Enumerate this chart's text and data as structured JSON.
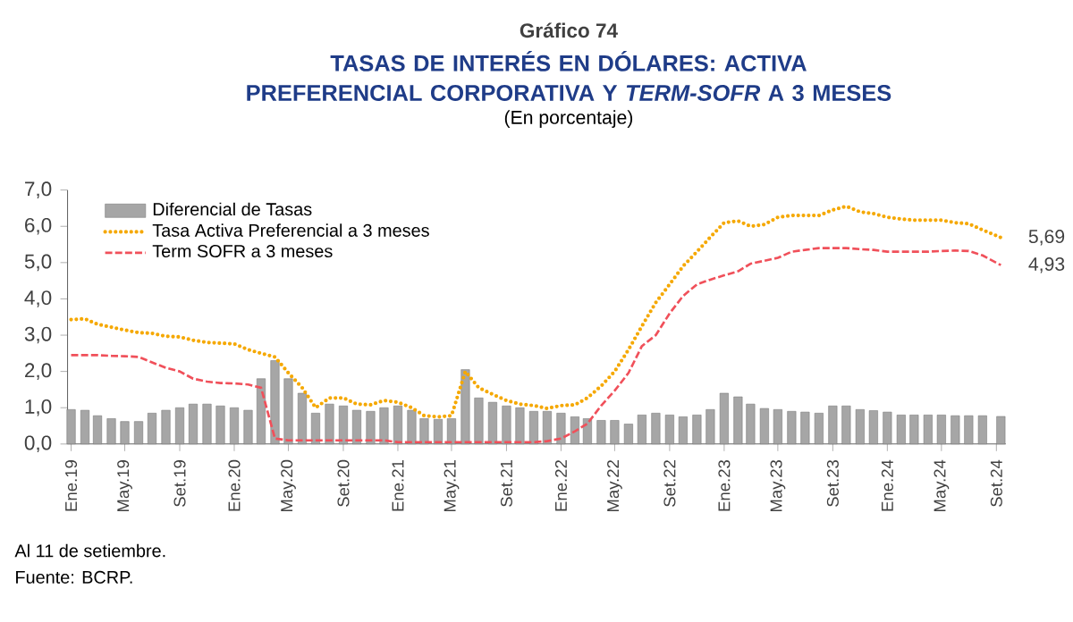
{
  "chart_data": {
    "type": "bar",
    "title": "TASAS DE INTERÉS EN DÓLARES: ACTIVA PREFERENCIAL CORPORATIVA Y *TERM-SOFR* A 3 MESES",
    "subtitle": "(En porcentaje)",
    "x": [
      "2019-01",
      "2019-02",
      "2019-03",
      "2019-04",
      "2019-05",
      "2019-06",
      "2019-07",
      "2019-08",
      "2019-09",
      "2019-10",
      "2019-11",
      "2019-12",
      "2020-01",
      "2020-02",
      "2020-03",
      "2020-04",
      "2020-05",
      "2020-06",
      "2020-07",
      "2020-08",
      "2020-09",
      "2020-10",
      "2020-11",
      "2020-12",
      "2021-01",
      "2021-02",
      "2021-03",
      "2021-04",
      "2021-05",
      "2021-06",
      "2021-07",
      "2021-08",
      "2021-09",
      "2021-10",
      "2021-11",
      "2021-12",
      "2022-01",
      "2022-02",
      "2022-03",
      "2022-04",
      "2022-05",
      "2022-06",
      "2022-07",
      "2022-08",
      "2022-09",
      "2022-10",
      "2022-11",
      "2022-12",
      "2023-01",
      "2023-02",
      "2023-03",
      "2023-04",
      "2023-05",
      "2023-06",
      "2023-07",
      "2023-08",
      "2023-09",
      "2023-10",
      "2023-11",
      "2023-12",
      "2024-01",
      "2024-02",
      "2024-03",
      "2024-04",
      "2024-05",
      "2024-06",
      "2024-07",
      "2024-08",
      "2024-09-11"
    ],
    "series": [
      {
        "name": "Diferencial de Tasas",
        "color": "#a6a6a6",
        "values": [
          0.95,
          0.93,
          0.78,
          0.7,
          0.62,
          0.62,
          0.85,
          0.93,
          1.0,
          1.1,
          1.1,
          1.05,
          1.0,
          0.93,
          1.8,
          2.3,
          1.8,
          1.4,
          0.85,
          1.1,
          1.05,
          0.93,
          0.9,
          1.0,
          1.05,
          0.93,
          0.7,
          0.68,
          0.7,
          2.05,
          1.27,
          1.15,
          1.05,
          1.0,
          0.9,
          0.9,
          0.85,
          0.75,
          0.7,
          0.65,
          0.65,
          0.55,
          0.8,
          0.85,
          0.8,
          0.75,
          0.8,
          0.95,
          1.4,
          1.3,
          1.1,
          0.98,
          0.95,
          0.9,
          0.88,
          0.85,
          1.05,
          1.05,
          0.95,
          0.92,
          0.88,
          0.8,
          0.8,
          0.8,
          0.8,
          0.78,
          0.78,
          0.78,
          0.76
        ]
      },
      {
        "name": "Tasa Activa Preferencial a 3 meses",
        "type": "line",
        "line_style": "dotted",
        "color": "#f5a800",
        "values": [
          3.43,
          3.45,
          3.3,
          3.22,
          3.14,
          3.07,
          3.05,
          2.97,
          2.95,
          2.86,
          2.8,
          2.78,
          2.76,
          2.6,
          2.5,
          2.4,
          1.96,
          1.55,
          1.0,
          1.27,
          1.27,
          1.1,
          1.08,
          1.2,
          1.15,
          1.0,
          0.78,
          0.75,
          0.78,
          2.0,
          1.55,
          1.37,
          1.2,
          1.1,
          1.06,
          0.98,
          1.06,
          1.08,
          1.27,
          1.6,
          2.0,
          2.6,
          3.25,
          3.9,
          4.4,
          4.9,
          5.3,
          5.7,
          6.1,
          6.15,
          6.0,
          6.05,
          6.25,
          6.3,
          6.3,
          6.3,
          6.45,
          6.55,
          6.4,
          6.35,
          6.25,
          6.2,
          6.17,
          6.17,
          6.17,
          6.1,
          6.07,
          5.9,
          5.69
        ]
      },
      {
        "name": "Term SOFR a 3 meses",
        "type": "line",
        "line_style": "dashed",
        "color": "#f0505a",
        "values": [
          2.45,
          2.45,
          2.45,
          2.43,
          2.42,
          2.4,
          2.25,
          2.1,
          2.0,
          1.8,
          1.72,
          1.68,
          1.67,
          1.64,
          1.55,
          0.15,
          0.1,
          0.1,
          0.1,
          0.1,
          0.1,
          0.1,
          0.1,
          0.1,
          0.05,
          0.05,
          0.05,
          0.05,
          0.05,
          0.05,
          0.05,
          0.05,
          0.05,
          0.05,
          0.05,
          0.08,
          0.15,
          0.35,
          0.56,
          1.06,
          1.47,
          1.96,
          2.7,
          3.0,
          3.6,
          4.08,
          4.4,
          4.53,
          4.65,
          4.76,
          4.97,
          5.05,
          5.13,
          5.3,
          5.35,
          5.4,
          5.4,
          5.4,
          5.37,
          5.35,
          5.3,
          5.3,
          5.3,
          5.3,
          5.32,
          5.33,
          5.32,
          5.2,
          4.93
        ]
      }
    ],
    "xlim": [
      "2018-12-24",
      "2024-09-22"
    ],
    "xticks": [
      {
        "value": "2019-01",
        "label": "Ene.19"
      },
      {
        "value": "2019-05",
        "label": "May.19"
      },
      {
        "value": "2019-09",
        "label": "Set.19"
      },
      {
        "value": "2020-01",
        "label": "Ene.20"
      },
      {
        "value": "2020-05",
        "label": "May.20"
      },
      {
        "value": "2020-09",
        "label": "Set.20"
      },
      {
        "value": "2021-01",
        "label": "Ene.21"
      },
      {
        "value": "2021-05",
        "label": "May.21"
      },
      {
        "value": "2021-09",
        "label": "Set.21"
      },
      {
        "value": "2022-01",
        "label": "Ene.22"
      },
      {
        "value": "2022-05",
        "label": "May.22"
      },
      {
        "value": "2022-09",
        "label": "Set.22"
      },
      {
        "value": "2023-01",
        "label": "Ene.23"
      },
      {
        "value": "2023-05",
        "label": "May.23"
      },
      {
        "value": "2023-09",
        "label": "Set.23"
      },
      {
        "value": "2024-01",
        "label": "Ene.24"
      },
      {
        "value": "2024-05",
        "label": "May.24"
      },
      {
        "value": "2024-09",
        "label": "Set.24"
      }
    ],
    "ylim": [
      0,
      7
    ],
    "yticks": [
      {
        "value": 0,
        "label": "0,0"
      },
      {
        "value": 1,
        "label": "1,0"
      },
      {
        "value": 2,
        "label": "2,0"
      },
      {
        "value": 3,
        "label": "3,0"
      },
      {
        "value": 4,
        "label": "4,0"
      },
      {
        "value": 5,
        "label": "5,0"
      },
      {
        "value": 6,
        "label": "6,0"
      },
      {
        "value": 7,
        "label": "7,0"
      }
    ],
    "legend": "top left",
    "annotations": [
      "Gráfico 74",
      {
        "text": "5,69",
        "x": "2024-09-11",
        "y": 5.69
      },
      {
        "text": "4,93",
        "x": "2024-09-11",
        "y": 4.93
      },
      "Al 11 de setiembre.",
      "Fuente: BCRP."
    ]
  }
}
